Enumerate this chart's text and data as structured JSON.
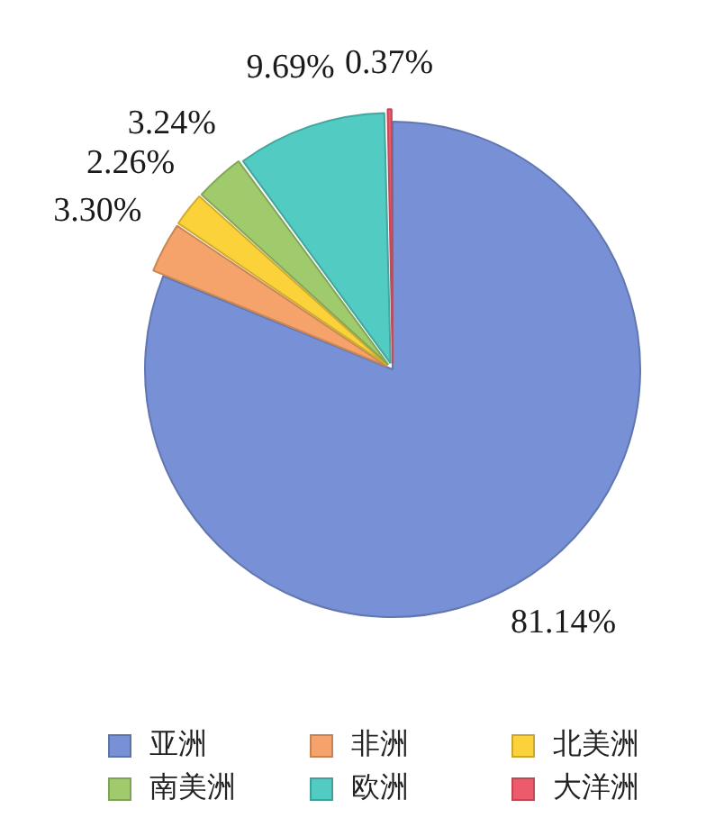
{
  "chart_data": {
    "type": "pie",
    "categories": [
      "亚洲",
      "非洲",
      "北美洲",
      "南美洲",
      "欧洲",
      "大洋洲"
    ],
    "values": [
      81.14,
      3.3,
      2.26,
      3.24,
      9.69,
      0.37
    ],
    "colors": [
      "#7790d6",
      "#f5a36a",
      "#fcd23a",
      "#a0cb6c",
      "#52cbc2",
      "#ec5a6c"
    ],
    "value_labels": [
      "81.14%",
      "3.30%",
      "2.26%",
      "3.24%",
      "9.69%",
      "0.37%"
    ],
    "legend": "bottom"
  }
}
